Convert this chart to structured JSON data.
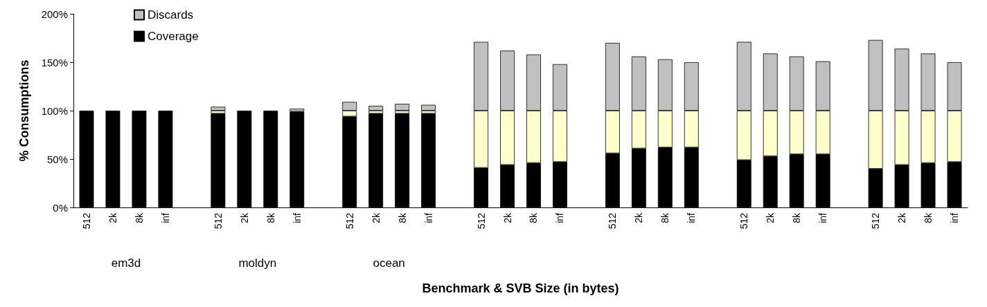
{
  "chart_data": {
    "type": "bar",
    "stacked": true,
    "xlabel": "Benchmark & SVB Size (in bytes)",
    "ylabel": "% Consumptions",
    "categories": [
      "512",
      "2k",
      "8k",
      "inf",
      null,
      "512",
      "2k",
      "8k",
      "inf",
      null,
      "512",
      "2k",
      "8k",
      "inf",
      null,
      "512",
      "2k",
      "8k",
      "inf",
      null,
      "512",
      "2k",
      "8k",
      "inf",
      null,
      "512",
      "2k",
      "8k",
      "inf",
      null,
      "512",
      "2k",
      "8k",
      "inf"
    ],
    "annotations": [
      "em3d",
      "moldyn",
      "ocean"
    ],
    "series": [
      {
        "name": "Coverage",
        "color": "#000000",
        "values": [
          100,
          100,
          100,
          100,
          null,
          97,
          100,
          100,
          99,
          null,
          94,
          97,
          97,
          97,
          null,
          41,
          44,
          46,
          47,
          null,
          56,
          61,
          62,
          62,
          null,
          49,
          53,
          55,
          55,
          null,
          40,
          44,
          46,
          47
        ]
      },
      {
        "color": "#ffffcc",
        "values": [
          0,
          0,
          0,
          0,
          null,
          3,
          null,
          null,
          null,
          null,
          6,
          3,
          3,
          3,
          null,
          59,
          56,
          54,
          53,
          null,
          44,
          39,
          38,
          38,
          null,
          51,
          47,
          45,
          45,
          null,
          60,
          56,
          54,
          53
        ]
      },
      {
        "name": "Discards",
        "color": "#c0c0c0",
        "values": [
          0,
          0,
          0,
          0,
          null,
          4,
          0,
          0,
          3,
          null,
          9,
          5,
          7,
          6,
          null,
          71,
          62,
          58,
          48,
          null,
          70,
          56,
          53,
          50,
          null,
          71,
          59,
          56,
          51,
          null,
          73,
          64,
          59,
          50
        ]
      }
    ],
    "ylim": [
      0,
      200
    ],
    "yticks": [
      {
        "value": 0,
        "label": "0%"
      },
      {
        "value": 50,
        "label": "50%"
      },
      {
        "value": 100,
        "label": "100%"
      },
      {
        "value": 150,
        "label": "150%"
      },
      {
        "value": 200,
        "label": "200%"
      }
    ],
    "grid": false,
    "legend": "top left"
  }
}
